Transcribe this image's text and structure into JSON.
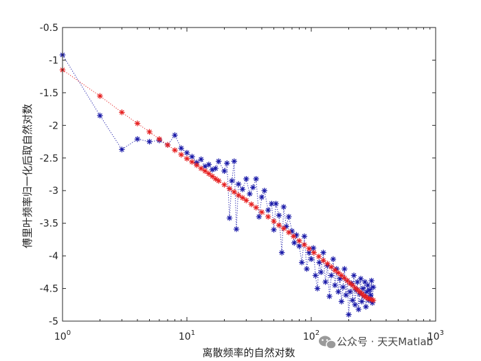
{
  "chart_data": {
    "type": "scatter",
    "xscale": "log",
    "xlim": [
      1,
      1000
    ],
    "ylim": [
      -5,
      -0.5
    ],
    "xlabel": "离散频率的自然对数",
    "ylabel": "傅里叶频率归一化后取自然对数",
    "grid": false,
    "xticks": [
      1,
      10,
      100,
      1000
    ],
    "yticks": [
      -5,
      -4.5,
      -4,
      -3.5,
      -3,
      -2.5,
      -2,
      -1.5,
      -1,
      -0.5
    ],
    "ytick_labels": [
      "-5",
      "-4.5",
      "-4",
      "-3.5",
      "-3",
      "-2.5",
      "-2",
      "-1.5",
      "-1",
      "-0.5"
    ],
    "series": [
      {
        "marker": "*",
        "line": "dotted",
        "color": "#1a1aa8",
        "points": [
          [
            1,
            -0.92
          ],
          [
            2,
            -1.85
          ],
          [
            3,
            -2.37
          ],
          [
            4,
            -2.21
          ],
          [
            5,
            -2.25
          ],
          [
            6,
            -2.23
          ],
          [
            7,
            -2.3
          ],
          [
            8,
            -2.15
          ],
          [
            9,
            -2.35
          ],
          [
            10,
            -2.42
          ],
          [
            11,
            -2.48
          ],
          [
            12,
            -2.57
          ],
          [
            13,
            -2.52
          ],
          [
            14,
            -2.63
          ],
          [
            15,
            -2.6
          ],
          [
            16,
            -2.68
          ],
          [
            17,
            -2.66
          ],
          [
            18,
            -2.55
          ],
          [
            20,
            -2.7
          ],
          [
            21,
            -2.58
          ],
          [
            22,
            -3.42
          ],
          [
            23,
            -2.85
          ],
          [
            24,
            -2.55
          ],
          [
            25,
            -3.59
          ],
          [
            26,
            -2.9
          ],
          [
            28,
            -2.98
          ],
          [
            30,
            -2.82
          ],
          [
            32,
            -3.05
          ],
          [
            34,
            -2.95
          ],
          [
            36,
            -2.82
          ],
          [
            38,
            -3.4
          ],
          [
            40,
            -3.1
          ],
          [
            42,
            -3.0
          ],
          [
            45,
            -3.3
          ],
          [
            48,
            -3.2
          ],
          [
            50,
            -3.6
          ],
          [
            52,
            -3.2
          ],
          [
            55,
            -3.38
          ],
          [
            58,
            -3.95
          ],
          [
            60,
            -3.25
          ],
          [
            63,
            -3.55
          ],
          [
            66,
            -3.4
          ],
          [
            70,
            -3.62
          ],
          [
            73,
            -3.8
          ],
          [
            76,
            -3.68
          ],
          [
            80,
            -3.85
          ],
          [
            84,
            -4.1
          ],
          [
            88,
            -3.7
          ],
          [
            92,
            -4.2
          ],
          [
            96,
            -3.95
          ],
          [
            100,
            -4.05
          ],
          [
            104,
            -3.88
          ],
          [
            108,
            -4.3
          ],
          [
            112,
            -4.5
          ],
          [
            116,
            -4.1
          ],
          [
            120,
            -4.25
          ],
          [
            125,
            -3.95
          ],
          [
            130,
            -4.4
          ],
          [
            135,
            -4.15
          ],
          [
            140,
            -4.62
          ],
          [
            145,
            -4.3
          ],
          [
            150,
            -4.05
          ],
          [
            155,
            -4.45
          ],
          [
            160,
            -4.2
          ],
          [
            165,
            -4.55
          ],
          [
            170,
            -4.35
          ],
          [
            175,
            -4.7
          ],
          [
            180,
            -4.48
          ],
          [
            185,
            -4.2
          ],
          [
            190,
            -4.6
          ],
          [
            195,
            -4.38
          ],
          [
            200,
            -4.9
          ],
          [
            205,
            -4.55
          ],
          [
            210,
            -4.42
          ],
          [
            215,
            -4.68
          ],
          [
            220,
            -4.3
          ],
          [
            225,
            -4.75
          ],
          [
            230,
            -4.52
          ],
          [
            235,
            -4.4
          ],
          [
            240,
            -4.82
          ],
          [
            245,
            -4.58
          ],
          [
            250,
            -4.35
          ],
          [
            255,
            -4.7
          ],
          [
            260,
            -4.5
          ],
          [
            265,
            -4.62
          ],
          [
            270,
            -4.4
          ],
          [
            275,
            -4.78
          ],
          [
            280,
            -4.55
          ],
          [
            285,
            -4.45
          ],
          [
            290,
            -4.68
          ],
          [
            295,
            -4.52
          ],
          [
            300,
            -4.6
          ],
          [
            305,
            -4.38
          ],
          [
            310,
            -4.72
          ],
          [
            315,
            -4.48
          ]
        ]
      },
      {
        "marker": "*",
        "line": "dotted",
        "color": "#e62020",
        "points": [
          [
            1,
            -1.15
          ],
          [
            2,
            -1.55
          ],
          [
            3,
            -1.8
          ],
          [
            4,
            -1.97
          ],
          [
            5,
            -2.1
          ],
          [
            6,
            -2.21
          ],
          [
            7,
            -2.3
          ],
          [
            8,
            -2.38
          ],
          [
            9,
            -2.45
          ],
          [
            10,
            -2.51
          ],
          [
            11,
            -2.56
          ],
          [
            12,
            -2.61
          ],
          [
            13,
            -2.66
          ],
          [
            14,
            -2.7
          ],
          [
            15,
            -2.74
          ],
          [
            16,
            -2.78
          ],
          [
            17,
            -2.82
          ],
          [
            18,
            -2.85
          ],
          [
            20,
            -2.91
          ],
          [
            22,
            -2.97
          ],
          [
            24,
            -3.02
          ],
          [
            26,
            -3.07
          ],
          [
            28,
            -3.11
          ],
          [
            30,
            -3.15
          ],
          [
            33,
            -3.21
          ],
          [
            36,
            -3.26
          ],
          [
            40,
            -3.33
          ],
          [
            45,
            -3.4
          ],
          [
            50,
            -3.47
          ],
          [
            55,
            -3.53
          ],
          [
            60,
            -3.58
          ],
          [
            66,
            -3.64
          ],
          [
            72,
            -3.7
          ],
          [
            80,
            -3.77
          ],
          [
            88,
            -3.83
          ],
          [
            96,
            -3.89
          ],
          [
            105,
            -3.95
          ],
          [
            115,
            -4.01
          ],
          [
            125,
            -4.07
          ],
          [
            135,
            -4.12
          ],
          [
            145,
            -4.17
          ],
          [
            155,
            -4.22
          ],
          [
            165,
            -4.26
          ],
          [
            175,
            -4.3
          ],
          [
            185,
            -4.34
          ],
          [
            195,
            -4.38
          ],
          [
            205,
            -4.42
          ],
          [
            215,
            -4.45
          ],
          [
            225,
            -4.49
          ],
          [
            235,
            -4.52
          ],
          [
            245,
            -4.55
          ],
          [
            255,
            -4.58
          ],
          [
            265,
            -4.61
          ],
          [
            275,
            -4.63
          ],
          [
            285,
            -4.65
          ],
          [
            295,
            -4.66
          ],
          [
            305,
            -4.67
          ],
          [
            315,
            -4.68
          ]
        ]
      }
    ]
  },
  "watermark": {
    "text": "公众号 · 天天Matlab",
    "icon": "wechat-icon"
  }
}
